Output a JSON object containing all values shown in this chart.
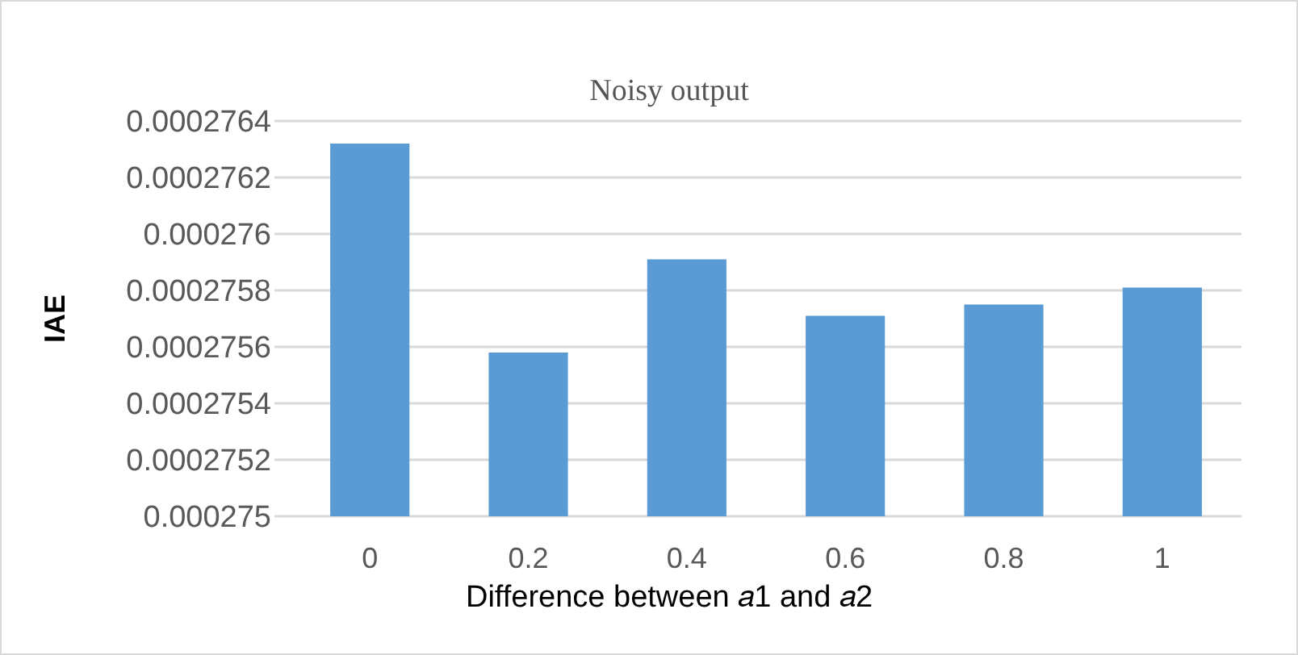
{
  "chart_data": {
    "type": "bar",
    "title": "Noisy output",
    "xlabel": "Difference between 𝑎1 and 𝑎2",
    "ylabel": "IAE",
    "categories": [
      "0",
      "0.2",
      "0.4",
      "0.6",
      "0.8",
      "1"
    ],
    "values": [
      0.00027632,
      0.00027558,
      0.00027591,
      0.00027571,
      0.00027575,
      0.00027581
    ],
    "color": "#5b9bd5",
    "ylim": [
      0.000275,
      0.0002764
    ],
    "yticks": [
      0.000275,
      0.0002752,
      0.0002754,
      0.0002756,
      0.0002758,
      0.000276,
      0.0002762,
      0.0002764
    ],
    "grid": true
  }
}
